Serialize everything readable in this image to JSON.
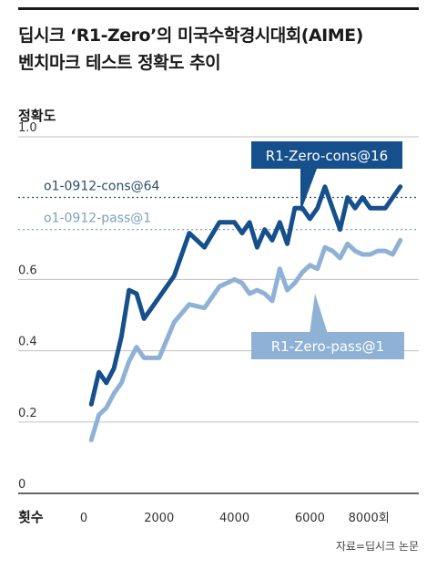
{
  "header": {
    "title_line1": "딥시크 ‘R1-Zero’의 미국수학경시대회(AIME)",
    "title_line2": "벤치마크 테스트 정확도 추이"
  },
  "source": "자료=딥시크 논문",
  "chart_data": {
    "type": "line",
    "ylabel": "정확도",
    "xlabel": "횟수",
    "xlim": [
      0,
      8600
    ],
    "ylim": [
      0,
      1.0
    ],
    "x_ticks": [
      "0",
      "2000",
      "4000",
      "6000",
      "8000회"
    ],
    "x_tick_values": [
      0,
      2000,
      4000,
      6000,
      8000
    ],
    "y_ticks": [
      "0",
      "0.2",
      "0.4",
      "0.6",
      "1.0"
    ],
    "y_tick_values": [
      0,
      0.2,
      0.4,
      0.6,
      1.0
    ],
    "colors": {
      "cons": "#16508c",
      "pass": "#8fb1d6",
      "ref_cons": "#2e4d6d",
      "ref_pass": "#7f9fbf",
      "grid": "#bfbfbf"
    },
    "series": [
      {
        "name": "R1-Zero-cons@16",
        "color": "#16508c",
        "points": [
          [
            200,
            0.25
          ],
          [
            400,
            0.34
          ],
          [
            600,
            0.31
          ],
          [
            800,
            0.35
          ],
          [
            1000,
            0.44
          ],
          [
            1200,
            0.57
          ],
          [
            1400,
            0.56
          ],
          [
            1600,
            0.49
          ],
          [
            1800,
            0.52
          ],
          [
            2000,
            0.55
          ],
          [
            2200,
            0.58
          ],
          [
            2400,
            0.61
          ],
          [
            2800,
            0.73
          ],
          [
            3200,
            0.69
          ],
          [
            3600,
            0.76
          ],
          [
            4000,
            0.76
          ],
          [
            4200,
            0.73
          ],
          [
            4400,
            0.76
          ],
          [
            4600,
            0.69
          ],
          [
            4800,
            0.74
          ],
          [
            5000,
            0.71
          ],
          [
            5200,
            0.76
          ],
          [
            5400,
            0.7
          ],
          [
            5600,
            0.8
          ],
          [
            5800,
            0.8
          ],
          [
            6000,
            0.77
          ],
          [
            6200,
            0.8
          ],
          [
            6400,
            0.86
          ],
          [
            6600,
            0.8
          ],
          [
            6800,
            0.74
          ],
          [
            7000,
            0.83
          ],
          [
            7200,
            0.8
          ],
          [
            7400,
            0.83
          ],
          [
            7600,
            0.8
          ],
          [
            7800,
            0.8
          ],
          [
            8000,
            0.8
          ],
          [
            8200,
            0.83
          ],
          [
            8400,
            0.86
          ]
        ]
      },
      {
        "name": "R1-Zero-pass@1",
        "color": "#8fb1d6",
        "points": [
          [
            200,
            0.15
          ],
          [
            400,
            0.22
          ],
          [
            600,
            0.24
          ],
          [
            800,
            0.28
          ],
          [
            1000,
            0.31
          ],
          [
            1200,
            0.37
          ],
          [
            1400,
            0.41
          ],
          [
            1600,
            0.38
          ],
          [
            2000,
            0.38
          ],
          [
            2400,
            0.48
          ],
          [
            2800,
            0.53
          ],
          [
            3200,
            0.52
          ],
          [
            3600,
            0.58
          ],
          [
            4000,
            0.6
          ],
          [
            4200,
            0.59
          ],
          [
            4400,
            0.56
          ],
          [
            4600,
            0.57
          ],
          [
            4800,
            0.56
          ],
          [
            5000,
            0.54
          ],
          [
            5200,
            0.63
          ],
          [
            5400,
            0.57
          ],
          [
            5600,
            0.59
          ],
          [
            5800,
            0.62
          ],
          [
            6000,
            0.64
          ],
          [
            6200,
            0.63
          ],
          [
            6400,
            0.69
          ],
          [
            6600,
            0.68
          ],
          [
            6800,
            0.66
          ],
          [
            7000,
            0.7
          ],
          [
            7200,
            0.68
          ],
          [
            7400,
            0.67
          ],
          [
            7600,
            0.67
          ],
          [
            7800,
            0.68
          ],
          [
            8000,
            0.68
          ],
          [
            8200,
            0.67
          ],
          [
            8400,
            0.71
          ]
        ]
      }
    ],
    "reference_lines": [
      {
        "name": "o1-0912-cons@64",
        "value": 0.83
      },
      {
        "name": "o1-0912-pass@1",
        "value": 0.74
      }
    ]
  }
}
